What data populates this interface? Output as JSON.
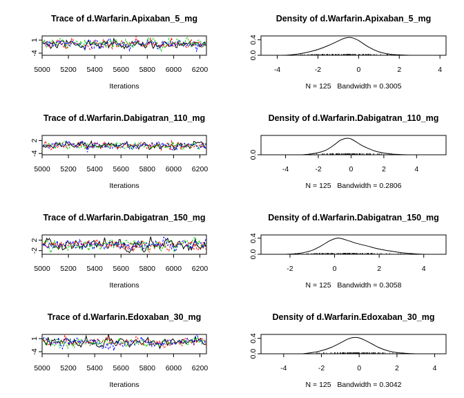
{
  "chart_data": [
    {
      "type": "line",
      "panel": "trace",
      "title": "Trace of d.Warfarin.Apixaban_5_mg",
      "xlabel": "Iterations",
      "ylabel": "",
      "xlim": [
        5000,
        6250
      ],
      "ylim": [
        -4.8,
        2.6
      ],
      "x_ticks": [
        5000,
        5200,
        5400,
        5600,
        5800,
        6000,
        6200
      ],
      "y_ticks": [
        -4,
        1
      ],
      "n_chains": 4,
      "chain_colors": [
        "#000000",
        "#ff0000",
        "#00cd00",
        "#0000ff"
      ],
      "x_start": 5005,
      "x_step": 10,
      "n_points": 125,
      "center": -0.6,
      "spread": 0.85
    },
    {
      "type": "line",
      "panel": "density",
      "title": "Density of d.Warfarin.Apixaban_5_mg",
      "xlabel": "N = 125   Bandwidth = 0.3005",
      "ylabel": "",
      "xlim": [
        -4.8,
        4.3
      ],
      "ylim": [
        0,
        0.5
      ],
      "x_ticks": [
        -4,
        -2,
        0,
        2,
        4
      ],
      "y_ticks": [
        0.0,
        0.4
      ],
      "density_x": [
        -4.4,
        -3.5,
        -3.0,
        -2.5,
        -2.0,
        -1.5,
        -1.0,
        -0.7,
        -0.5,
        -0.3,
        0.0,
        0.5,
        1.0,
        1.5,
        2.0,
        2.5
      ],
      "density_y": [
        0.0,
        0.005,
        0.03,
        0.08,
        0.15,
        0.25,
        0.37,
        0.44,
        0.46,
        0.45,
        0.38,
        0.21,
        0.09,
        0.03,
        0.01,
        0.0
      ]
    },
    {
      "type": "line",
      "panel": "trace",
      "title": "Trace of d.Warfarin.Dabigatran_110_mg",
      "xlabel": "Iterations",
      "ylabel": "",
      "xlim": [
        5000,
        6250
      ],
      "ylim": [
        -4.6,
        4.4
      ],
      "x_ticks": [
        5000,
        5200,
        5400,
        5600,
        5800,
        6000,
        6200
      ],
      "y_ticks": [
        -4,
        2
      ],
      "n_chains": 4,
      "chain_colors": [
        "#000000",
        "#ff0000",
        "#00cd00",
        "#0000ff"
      ],
      "x_start": 5005,
      "x_step": 10,
      "n_points": 125,
      "center": -0.3,
      "spread": 0.9
    },
    {
      "type": "line",
      "panel": "density",
      "title": "Density of d.Warfarin.Dabigatran_110_mg",
      "xlabel": "N = 125   Bandwidth = 0.2806",
      "ylabel": "",
      "xlim": [
        -5.5,
        5.8
      ],
      "ylim": [
        0,
        0.55
      ],
      "x_ticks": [
        -4,
        -2,
        0,
        2,
        4
      ],
      "y_ticks": [
        0.0
      ],
      "density_x": [
        -3.0,
        -2.5,
        -2.0,
        -1.5,
        -1.0,
        -0.7,
        -0.4,
        -0.2,
        0.0,
        0.3,
        0.6,
        1.0,
        1.5,
        2.0,
        2.5,
        3.0,
        3.5
      ],
      "density_y": [
        0.0,
        0.02,
        0.06,
        0.14,
        0.29,
        0.4,
        0.46,
        0.47,
        0.45,
        0.37,
        0.28,
        0.19,
        0.1,
        0.05,
        0.02,
        0.008,
        0.0
      ]
    },
    {
      "type": "line",
      "panel": "trace",
      "title": "Trace of d.Warfarin.Dabigatran_150_mg",
      "xlabel": "Iterations",
      "ylabel": "",
      "xlim": [
        5000,
        6250
      ],
      "ylim": [
        -3.4,
        4.0
      ],
      "x_ticks": [
        5000,
        5200,
        5400,
        5600,
        5800,
        6000,
        6200
      ],
      "y_ticks": [
        -2,
        2
      ],
      "n_chains": 4,
      "chain_colors": [
        "#000000",
        "#ff0000",
        "#00cd00",
        "#0000ff"
      ],
      "x_start": 5005,
      "x_step": 10,
      "n_points": 125,
      "center": 0.4,
      "spread": 1.0
    },
    {
      "type": "line",
      "panel": "density",
      "title": "Density of d.Warfarin.Dabigatran_150_mg",
      "xlabel": "N = 125   Bandwidth = 0.3058",
      "ylabel": "",
      "xlim": [
        -3.3,
        5.0
      ],
      "ylim": [
        0,
        0.48
      ],
      "x_ticks": [
        -2,
        0,
        2,
        4
      ],
      "y_ticks": [
        0.0,
        0.4
      ],
      "density_x": [
        -2.2,
        -1.8,
        -1.4,
        -1.0,
        -0.6,
        -0.2,
        0.1,
        0.3,
        0.6,
        1.0,
        1.5,
        2.0,
        2.5,
        3.0,
        3.5,
        4.0
      ],
      "density_y": [
        0.0,
        0.01,
        0.04,
        0.1,
        0.21,
        0.34,
        0.4,
        0.39,
        0.34,
        0.27,
        0.2,
        0.13,
        0.08,
        0.04,
        0.015,
        0.0
      ]
    },
    {
      "type": "line",
      "panel": "trace",
      "title": "Trace of d.Warfarin.Edoxaban_30_mg",
      "xlabel": "Iterations",
      "ylabel": "",
      "xlim": [
        5000,
        6250
      ],
      "ylim": [
        -4.8,
        2.6
      ],
      "x_ticks": [
        5000,
        5200,
        5400,
        5600,
        5800,
        6000,
        6200
      ],
      "y_ticks": [
        -4,
        1
      ],
      "n_chains": 4,
      "chain_colors": [
        "#000000",
        "#ff0000",
        "#00cd00",
        "#0000ff"
      ],
      "x_start": 5005,
      "x_step": 10,
      "n_points": 125,
      "center": -0.4,
      "spread": 0.85
    },
    {
      "type": "line",
      "panel": "density",
      "title": "Density of d.Warfarin.Edoxaban_30_mg",
      "xlabel": "N = 125   Bandwidth = 0.3042",
      "ylabel": "",
      "xlim": [
        -5.2,
        4.6
      ],
      "ylim": [
        0,
        0.5
      ],
      "x_ticks": [
        -4,
        -2,
        0,
        2,
        4
      ],
      "y_ticks": [
        0.0,
        0.4
      ],
      "density_x": [
        -3.0,
        -2.5,
        -2.0,
        -1.5,
        -1.0,
        -0.6,
        -0.3,
        0.0,
        0.3,
        0.7,
        1.0,
        1.5,
        2.0,
        2.5,
        3.0
      ],
      "density_y": [
        0.0,
        0.03,
        0.08,
        0.16,
        0.28,
        0.38,
        0.42,
        0.41,
        0.35,
        0.25,
        0.17,
        0.08,
        0.03,
        0.01,
        0.0
      ]
    }
  ]
}
